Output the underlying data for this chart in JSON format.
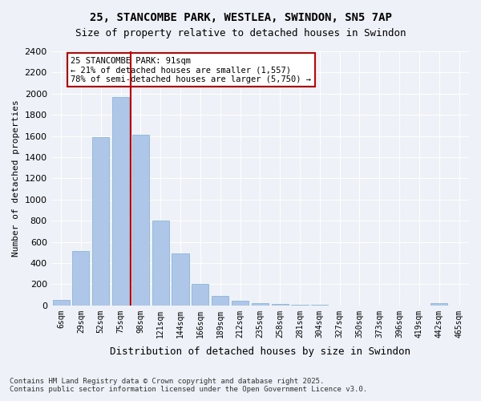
{
  "title_line1": "25, STANCOMBE PARK, WESTLEA, SWINDON, SN5 7AP",
  "title_line2": "Size of property relative to detached houses in Swindon",
  "xlabel": "Distribution of detached houses by size in Swindon",
  "ylabel": "Number of detached properties",
  "categories": [
    "6sqm",
    "29sqm",
    "52sqm",
    "75sqm",
    "98sqm",
    "121sqm",
    "144sqm",
    "166sqm",
    "189sqm",
    "212sqm",
    "235sqm",
    "258sqm",
    "281sqm",
    "304sqm",
    "327sqm",
    "350sqm",
    "373sqm",
    "396sqm",
    "419sqm",
    "442sqm",
    "465sqm"
  ],
  "values": [
    50,
    510,
    1590,
    1970,
    1610,
    800,
    490,
    200,
    90,
    40,
    20,
    10,
    5,
    3,
    2,
    1,
    1,
    0,
    0,
    20,
    0
  ],
  "bar_color": "#aec6e8",
  "bar_edge_color": "#7bafd4",
  "vline_x": 3,
  "vline_color": "#cc0000",
  "annotation_text": "25 STANCOMBE PARK: 91sqm\n← 21% of detached houses are smaller (1,557)\n78% of semi-detached houses are larger (5,750) →",
  "annotation_box_color": "#ffffff",
  "annotation_box_edge": "#cc0000",
  "ylim": [
    0,
    2400
  ],
  "yticks": [
    0,
    200,
    400,
    600,
    800,
    1000,
    1200,
    1400,
    1600,
    1800,
    2000,
    2200,
    2400
  ],
  "bg_color": "#eef2f8",
  "grid_color": "#ffffff",
  "footnote": "Contains HM Land Registry data © Crown copyright and database right 2025.\nContains public sector information licensed under the Open Government Licence v3.0."
}
